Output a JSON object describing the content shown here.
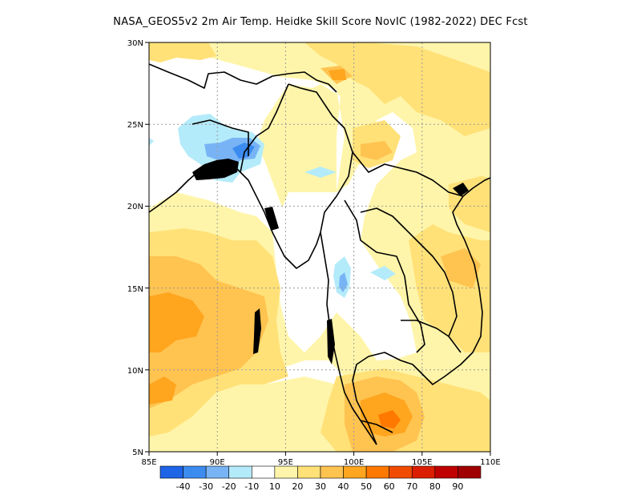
{
  "title": "NASA_GEOS5v2  2m Air Temp. Heidke Skill Score NovIC (1982-2022) DEC Fcst",
  "axes": {
    "lon_ticks": [
      "85E",
      "90E",
      "95E",
      "100E",
      "105E",
      "110E"
    ],
    "lat_ticks": [
      "30N",
      "25N",
      "20N",
      "15N",
      "10N",
      "5N"
    ]
  },
  "colorbar": {
    "labels": [
      "-40",
      "-30",
      "-20",
      "-10",
      "10",
      "20",
      "30",
      "40",
      "50",
      "60",
      "70",
      "80",
      "90"
    ],
    "colors": [
      "#1e64e6",
      "#3c8cf0",
      "#78b4f5",
      "#b4ebfa",
      "#ffffff",
      "#fff5aa",
      "#ffe178",
      "#ffc350",
      "#ffa51e",
      "#ff7800",
      "#f04b00",
      "#dc1e00",
      "#c00000",
      "#a00000"
    ]
  },
  "chart_data": {
    "type": "heatmap",
    "variable": "Heidke Skill Score",
    "lon_range": [
      85,
      110
    ],
    "lat_range": [
      5,
      30
    ],
    "grid": "dotted",
    "levels": [
      -40,
      -30,
      -20,
      -10,
      10,
      20,
      30,
      40,
      50,
      60,
      70,
      80,
      90
    ]
  }
}
